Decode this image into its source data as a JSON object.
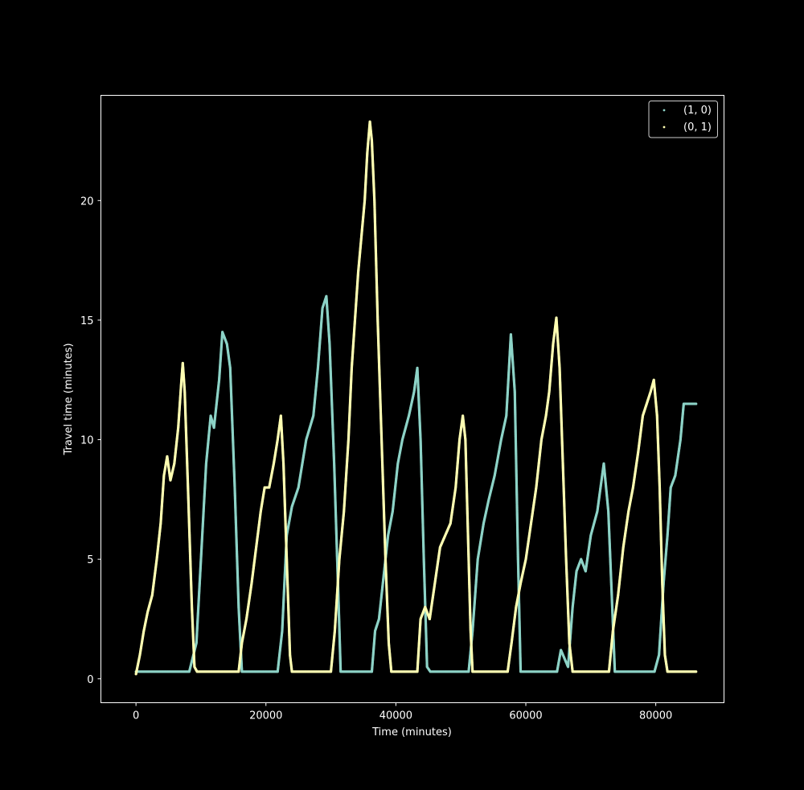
{
  "chart_data": {
    "type": "scatter",
    "xlabel": "Time (minutes)",
    "ylabel": "Travel time (minutes)",
    "xlim": [
      -5400,
      90500
    ],
    "ylim": [
      -1.0,
      24.4
    ],
    "xticks": [
      0,
      20000,
      40000,
      60000,
      80000
    ],
    "yticks": [
      0,
      5,
      10,
      15,
      20
    ],
    "xtick_labels": [
      "0",
      "20000",
      "40000",
      "60000",
      "80000"
    ],
    "ytick_labels": [
      "0",
      "5",
      "10",
      "15",
      "20"
    ],
    "grid": false,
    "legend_placement": "top-right",
    "background": "#000000",
    "axes_color": "#ffffff",
    "series": [
      {
        "name": "(1, 0)",
        "color": "#8dd3c7",
        "points": [
          [
            0,
            0.3
          ],
          [
            8200,
            0.3
          ],
          [
            9300,
            1.5
          ],
          [
            10200,
            6
          ],
          [
            10800,
            9
          ],
          [
            11500,
            11
          ],
          [
            12000,
            10.5
          ],
          [
            12800,
            12.5
          ],
          [
            13300,
            14.5
          ],
          [
            14000,
            14
          ],
          [
            14500,
            13
          ],
          [
            15200,
            8
          ],
          [
            15800,
            3
          ],
          [
            16300,
            0.3
          ],
          [
            21800,
            0.3
          ],
          [
            22500,
            2
          ],
          [
            23200,
            6
          ],
          [
            24000,
            7.2
          ],
          [
            25000,
            8
          ],
          [
            26200,
            10
          ],
          [
            27300,
            11
          ],
          [
            28000,
            13
          ],
          [
            28700,
            15.5
          ],
          [
            29300,
            16
          ],
          [
            29800,
            14
          ],
          [
            30500,
            9
          ],
          [
            31200,
            3
          ],
          [
            31500,
            0.3
          ],
          [
            36300,
            0.3
          ],
          [
            36800,
            2
          ],
          [
            37400,
            2.5
          ],
          [
            38000,
            4
          ],
          [
            38800,
            6
          ],
          [
            39500,
            7
          ],
          [
            40300,
            9
          ],
          [
            41000,
            10
          ],
          [
            42000,
            11
          ],
          [
            42800,
            12
          ],
          [
            43300,
            13
          ],
          [
            43800,
            10
          ],
          [
            44300,
            5
          ],
          [
            44800,
            0.5
          ],
          [
            45300,
            0.3
          ],
          [
            51200,
            0.3
          ],
          [
            51800,
            2
          ],
          [
            52600,
            5
          ],
          [
            53500,
            6.5
          ],
          [
            54300,
            7.5
          ],
          [
            55200,
            8.5
          ],
          [
            56200,
            10
          ],
          [
            57000,
            11
          ],
          [
            57700,
            14.4
          ],
          [
            58300,
            12
          ],
          [
            58800,
            5
          ],
          [
            59200,
            0.3
          ],
          [
            64800,
            0.3
          ],
          [
            65400,
            1.2
          ],
          [
            66500,
            0.5
          ],
          [
            67200,
            3
          ],
          [
            67800,
            4.5
          ],
          [
            68500,
            5
          ],
          [
            69200,
            4.5
          ],
          [
            70000,
            6
          ],
          [
            71000,
            7
          ],
          [
            72000,
            9
          ],
          [
            72700,
            7
          ],
          [
            73300,
            3
          ],
          [
            73700,
            0.3
          ],
          [
            79800,
            0.3
          ],
          [
            80500,
            1
          ],
          [
            81200,
            4
          ],
          [
            81800,
            6
          ],
          [
            82300,
            8
          ],
          [
            83000,
            8.5
          ],
          [
            83800,
            10
          ],
          [
            84300,
            11.5
          ],
          [
            85000,
            11.5
          ],
          [
            86200,
            11.5
          ]
        ]
      },
      {
        "name": "(0, 1)",
        "color": "#ffffb3",
        "points": [
          [
            0,
            0.2
          ],
          [
            600,
            1
          ],
          [
            1200,
            2
          ],
          [
            1800,
            2.8
          ],
          [
            2500,
            3.5
          ],
          [
            3200,
            5
          ],
          [
            3800,
            6.5
          ],
          [
            4300,
            8.5
          ],
          [
            4800,
            9.3
          ],
          [
            5300,
            8.3
          ],
          [
            5900,
            9
          ],
          [
            6500,
            10.5
          ],
          [
            7000,
            12.5
          ],
          [
            7200,
            13.2
          ],
          [
            7500,
            12
          ],
          [
            8000,
            8
          ],
          [
            8600,
            3
          ],
          [
            9000,
            0.5
          ],
          [
            9400,
            0.3
          ],
          [
            15800,
            0.3
          ],
          [
            16300,
            1.5
          ],
          [
            17000,
            2.5
          ],
          [
            17800,
            4
          ],
          [
            18500,
            5.5
          ],
          [
            19200,
            7
          ],
          [
            19800,
            8
          ],
          [
            20500,
            8
          ],
          [
            21200,
            9
          ],
          [
            21800,
            10
          ],
          [
            22300,
            11
          ],
          [
            22700,
            9
          ],
          [
            23200,
            5
          ],
          [
            23700,
            1
          ],
          [
            24000,
            0.3
          ],
          [
            30000,
            0.3
          ],
          [
            30600,
            2
          ],
          [
            31300,
            5
          ],
          [
            32000,
            7
          ],
          [
            32700,
            10
          ],
          [
            33200,
            13
          ],
          [
            33700,
            15
          ],
          [
            34200,
            17
          ],
          [
            34700,
            18.5
          ],
          [
            35200,
            20
          ],
          [
            35600,
            22
          ],
          [
            36000,
            23.3
          ],
          [
            36300,
            22.5
          ],
          [
            36700,
            20
          ],
          [
            37200,
            15
          ],
          [
            37800,
            10
          ],
          [
            38400,
            5
          ],
          [
            38900,
            1.5
          ],
          [
            39300,
            0.3
          ],
          [
            43300,
            0.3
          ],
          [
            43800,
            2.5
          ],
          [
            44500,
            3
          ],
          [
            45200,
            2.5
          ],
          [
            46000,
            4
          ],
          [
            46800,
            5.5
          ],
          [
            47600,
            6
          ],
          [
            48400,
            6.5
          ],
          [
            49200,
            8
          ],
          [
            49800,
            10
          ],
          [
            50300,
            11
          ],
          [
            50700,
            10
          ],
          [
            51100,
            6
          ],
          [
            51500,
            2
          ],
          [
            51800,
            0.3
          ],
          [
            57200,
            0.3
          ],
          [
            57800,
            1.5
          ],
          [
            58500,
            3
          ],
          [
            59200,
            4
          ],
          [
            60000,
            5
          ],
          [
            60800,
            6.5
          ],
          [
            61600,
            8
          ],
          [
            62400,
            10
          ],
          [
            63100,
            11
          ],
          [
            63600,
            12
          ],
          [
            64200,
            14
          ],
          [
            64700,
            15.1
          ],
          [
            65200,
            13
          ],
          [
            65700,
            9
          ],
          [
            66200,
            5
          ],
          [
            66700,
            1.5
          ],
          [
            67200,
            0.3
          ],
          [
            72800,
            0.3
          ],
          [
            73400,
            2
          ],
          [
            74200,
            3.5
          ],
          [
            75000,
            5.5
          ],
          [
            75800,
            7
          ],
          [
            76500,
            8
          ],
          [
            77300,
            9.5
          ],
          [
            78000,
            11
          ],
          [
            78600,
            11.5
          ],
          [
            79200,
            12
          ],
          [
            79700,
            12.5
          ],
          [
            80200,
            11
          ],
          [
            80600,
            8
          ],
          [
            81000,
            4
          ],
          [
            81400,
            1
          ],
          [
            81800,
            0.3
          ],
          [
            86200,
            0.3
          ]
        ]
      }
    ]
  }
}
